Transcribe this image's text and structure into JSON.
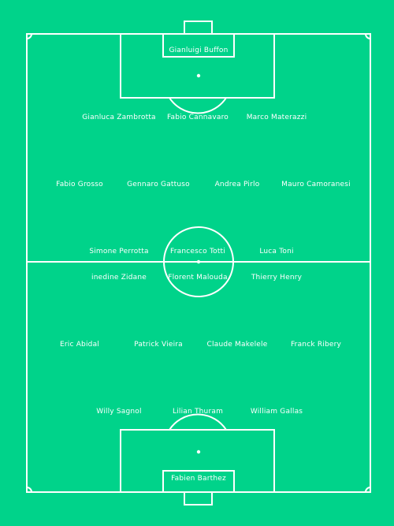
{
  "colors": {
    "pitch": "#00d38a",
    "lines": "#ffffff",
    "text": "#ffffff"
  },
  "teams": [
    {
      "side": "top",
      "lines": [
        [
          "Gianluigi Buffon"
        ],
        [
          "Gianluca Zambrotta",
          "Fabio Cannavaro",
          "Marco Materazzi"
        ],
        [
          "Fabio Grosso",
          "Gennaro Gattuso",
          "Andrea Pirlo",
          "Mauro Camoranesi"
        ],
        [
          "Simone Perrotta",
          "Francesco Totti",
          "Luca Toni"
        ]
      ]
    },
    {
      "side": "bottom",
      "lines": [
        [
          "inedine Zidane",
          "Florent Malouda",
          "Thierry Henry"
        ],
        [
          "Eric Abidal",
          "Patrick Vieira",
          "Claude Makelele",
          "Franck Ribery"
        ],
        [
          "Willy Sagnol",
          "Lilian Thuram",
          "William Gallas"
        ],
        [
          "Fabien Barthez"
        ]
      ]
    }
  ]
}
